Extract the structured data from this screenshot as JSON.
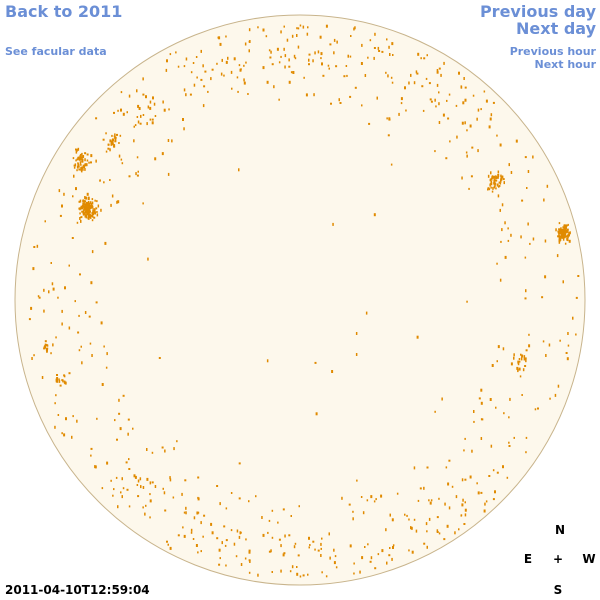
{
  "nav": {
    "back": "Back to 2011",
    "facular": "See facular data",
    "prev_day": "Previous day",
    "next_day": "Next day",
    "prev_hour": "Previous hour",
    "next_hour": "Next hour"
  },
  "timestamp": "2011-04-10T12:59:04",
  "compass": {
    "n": "N",
    "e": "E",
    "center": "+",
    "w": "W",
    "s": "S"
  },
  "colors": {
    "disk_fill": "#fdf8ec",
    "disk_stroke": "#c8b48c",
    "facula_points": "#e08a00",
    "link": "#6b8fd6"
  }
}
